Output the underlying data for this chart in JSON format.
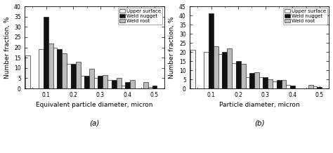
{
  "chart_a": {
    "xlabel": "Equivalent particle diameter, micron",
    "ylabel": "Number fraction, %",
    "label": "(a)",
    "ylim": [
      0,
      40
    ],
    "yticks": [
      0,
      5,
      10,
      15,
      20,
      25,
      30,
      35,
      40
    ],
    "xticks": [
      0.1,
      0.2,
      0.3,
      0.4,
      0.5
    ],
    "xticklabels": [
      "0.1",
      "0.2",
      "0.3",
      "0.4",
      "0.5"
    ],
    "bin_centers": [
      0.05,
      0.1,
      0.15,
      0.2,
      0.25,
      0.3,
      0.35,
      0.4,
      0.45,
      0.5
    ],
    "upper_surface": [
      16,
      19,
      20,
      12,
      6,
      5,
      4,
      1.5,
      0,
      0.8
    ],
    "weld_nugget": [
      0,
      35,
      19,
      12,
      6,
      6,
      4,
      3,
      0,
      1.5
    ],
    "weld_root": [
      0,
      22,
      17,
      13,
      9.5,
      6.5,
      5,
      4,
      3,
      0
    ]
  },
  "chart_b": {
    "xlabel": "Particle diameter, micron",
    "ylabel": "Number fraction, %",
    "label": "(b)",
    "ylim": [
      0,
      45
    ],
    "yticks": [
      0,
      5,
      10,
      15,
      20,
      25,
      30,
      35,
      40,
      45
    ],
    "xticks": [
      0.1,
      0.2,
      0.3,
      0.4,
      0.5
    ],
    "xticklabels": [
      "0.1",
      "0.2",
      "0.3",
      "0.4",
      "0.5"
    ],
    "bin_centers": [
      0.05,
      0.1,
      0.15,
      0.2,
      0.25,
      0.3,
      0.35,
      0.4,
      0.45,
      0.5
    ],
    "upper_surface": [
      21,
      20,
      19,
      14,
      6,
      6,
      4,
      2,
      0,
      1
    ],
    "weld_nugget": [
      0,
      41,
      20,
      15,
      8.5,
      6,
      4.5,
      1.5,
      0,
      0.8
    ],
    "weld_root": [
      0,
      23,
      22,
      13.5,
      9,
      5,
      4.5,
      0,
      2,
      0
    ]
  },
  "upper_surface_color": "#f2f2f2",
  "weld_nugget_color": "#111111",
  "weld_root_color": "#bbbbbb",
  "bar_width": 0.018,
  "bar_gap": 0.0,
  "legend_labels": [
    "Upper surface",
    "Weld nugget",
    "Weld root"
  ],
  "tick_fontsize": 5.5,
  "label_fontsize": 6.5,
  "legend_fontsize": 5.0,
  "xlim_left": 0.02,
  "xlim_right": 0.535
}
